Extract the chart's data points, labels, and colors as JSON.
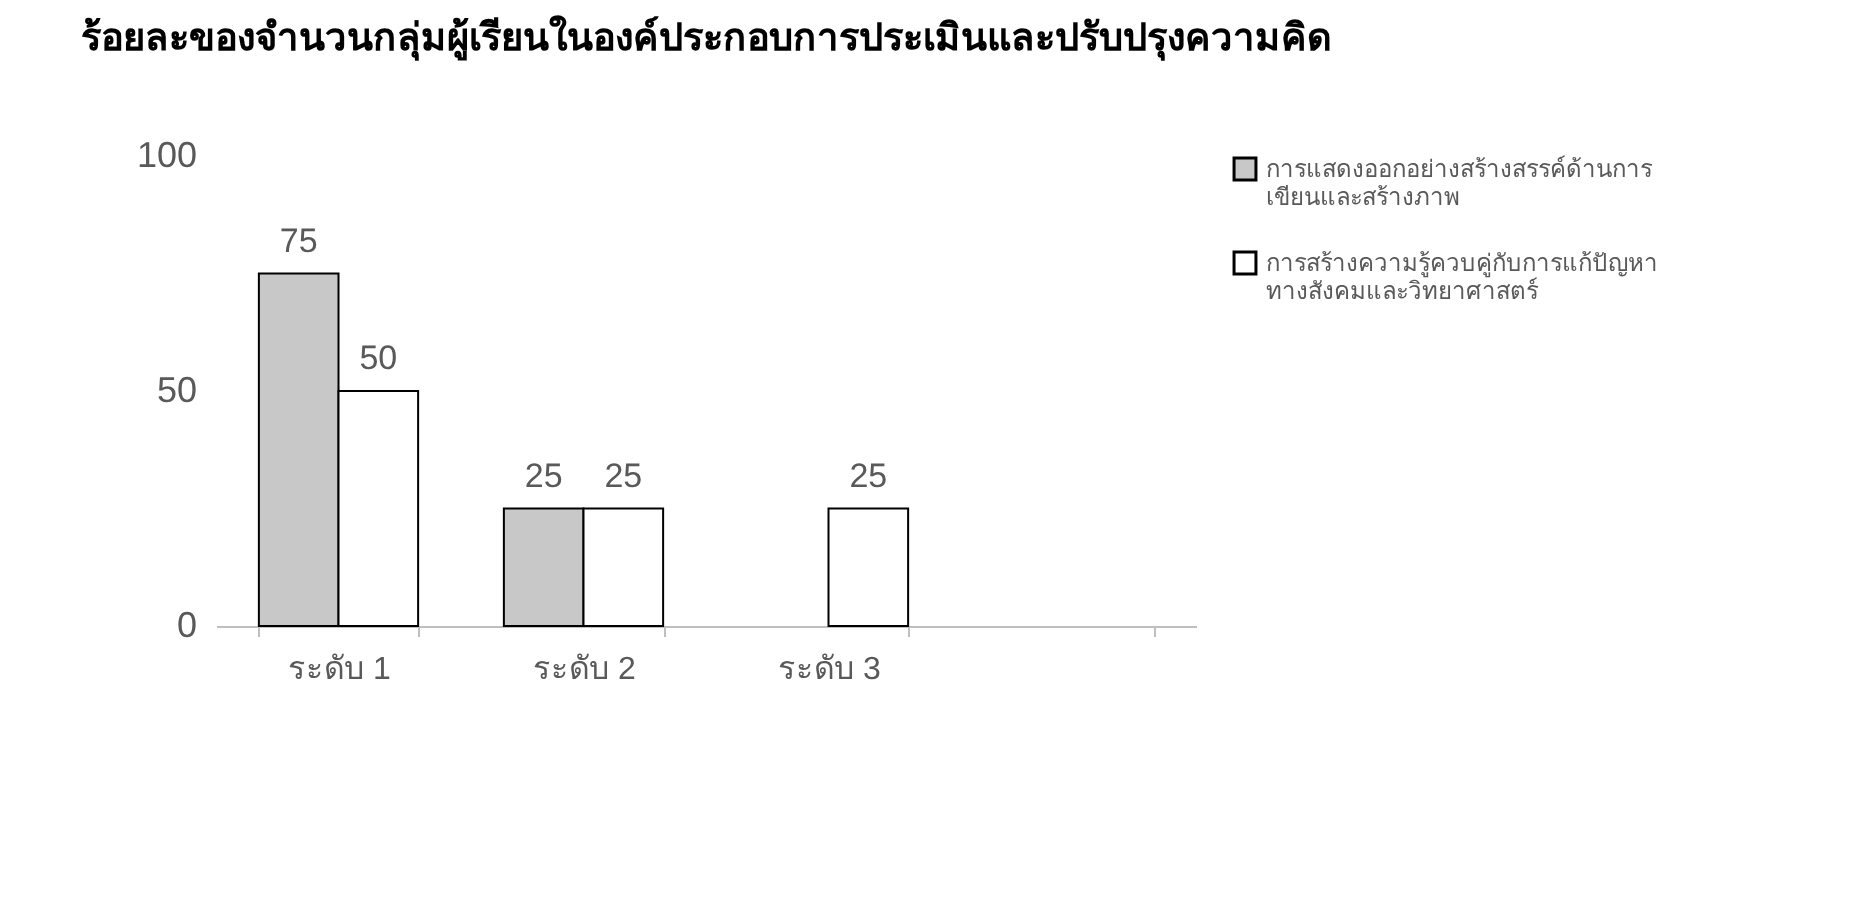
{
  "chart_data": {
    "type": "bar",
    "title": "ร้อยละของจำนวนกลุ่มผู้เรียนในองค์ประกอบการประเมินและปรับปรุงความคิด",
    "categories": [
      "ระดับ 1",
      "ระดับ 2",
      "ระดับ 3",
      null
    ],
    "series": [
      {
        "name": "การแสดงออกอย่างสร้างสรรค์ด้านการเขียนและสร้างภาพ",
        "color": "#c8c8c8",
        "values": [
          75,
          25,
          null,
          null
        ]
      },
      {
        "name": "การสร้างความรู้ควบคู่กับการแก้ปัญหาทางสังคมและวิทยาศาสตร์",
        "color": "#ffffff",
        "values": [
          50,
          25,
          25,
          null
        ]
      }
    ],
    "ylim": [
      0,
      100
    ],
    "yticks": [
      0,
      50,
      100
    ],
    "grid": false,
    "legend": "right",
    "data_labels": true
  }
}
